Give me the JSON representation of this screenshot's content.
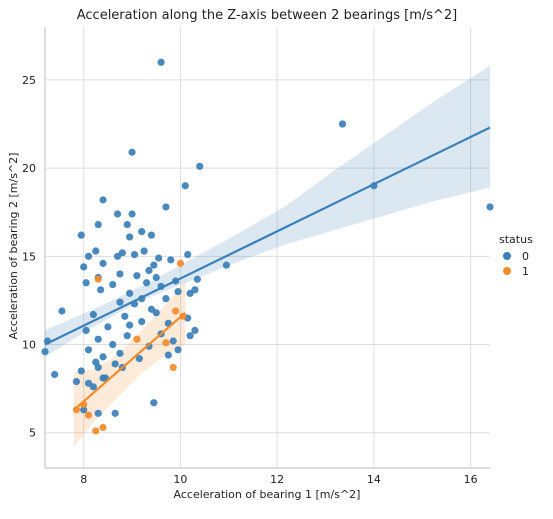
{
  "chart_data": {
    "type": "scatter",
    "title": "Acceleration along the Z-axis between 2 bearings [m/s^2]",
    "xlabel": "Acceleration of bearing 1 [m/s^2]",
    "ylabel": "Acceleration of bearing 2 [m/s^2]",
    "xlim": [
      7.2,
      16.4
    ],
    "ylim": [
      3.0,
      28.0
    ],
    "xticks": [
      8,
      10,
      12,
      14,
      16
    ],
    "yticks": [
      5,
      10,
      15,
      20,
      25
    ],
    "grid": true,
    "legend": {
      "title": "status",
      "placement": "right"
    },
    "series": [
      {
        "name": "0",
        "color": "#3a7fb8",
        "points": [
          [
            9.6,
            26.0
          ],
          [
            13.35,
            22.5
          ],
          [
            9.0,
            20.9
          ],
          [
            10.4,
            20.1
          ],
          [
            14.0,
            19.0
          ],
          [
            10.1,
            19.0
          ],
          [
            8.4,
            18.2
          ],
          [
            9.7,
            17.8
          ],
          [
            16.4,
            17.8
          ],
          [
            8.7,
            17.4
          ],
          [
            9.0,
            17.4
          ],
          [
            8.9,
            16.8
          ],
          [
            8.3,
            16.8
          ],
          [
            9.2,
            16.4
          ],
          [
            7.95,
            16.2
          ],
          [
            9.4,
            16.2
          ],
          [
            8.95,
            16.1
          ],
          [
            8.25,
            15.3
          ],
          [
            8.7,
            15.0
          ],
          [
            9.05,
            15.1
          ],
          [
            9.25,
            15.3
          ],
          [
            8.8,
            15.2
          ],
          [
            8.1,
            15.0
          ],
          [
            9.55,
            14.9
          ],
          [
            10.15,
            15.1
          ],
          [
            9.45,
            14.5
          ],
          [
            9.8,
            14.8
          ],
          [
            10.95,
            14.5
          ],
          [
            8.4,
            14.6
          ],
          [
            8.0,
            14.4
          ],
          [
            9.35,
            14.2
          ],
          [
            8.75,
            14.0
          ],
          [
            9.1,
            13.9
          ],
          [
            8.3,
            13.8
          ],
          [
            9.5,
            13.8
          ],
          [
            9.9,
            13.6
          ],
          [
            10.35,
            13.7
          ],
          [
            8.05,
            13.5
          ],
          [
            8.6,
            13.4
          ],
          [
            9.3,
            13.5
          ],
          [
            9.6,
            13.3
          ],
          [
            9.95,
            13.0
          ],
          [
            10.3,
            13.1
          ],
          [
            8.35,
            13.1
          ],
          [
            8.95,
            12.9
          ],
          [
            9.2,
            12.6
          ],
          [
            9.7,
            12.6
          ],
          [
            10.2,
            12.9
          ],
          [
            8.75,
            12.4
          ],
          [
            9.05,
            12.3
          ],
          [
            9.4,
            12.0
          ],
          [
            7.55,
            11.9
          ],
          [
            8.2,
            11.7
          ],
          [
            8.85,
            11.6
          ],
          [
            9.5,
            11.8
          ],
          [
            10.15,
            11.5
          ],
          [
            9.75,
            11.2
          ],
          [
            8.95,
            11.1
          ],
          [
            8.5,
            11.0
          ],
          [
            9.2,
            11.3
          ],
          [
            8.05,
            10.8
          ],
          [
            10.3,
            10.8
          ],
          [
            8.9,
            10.5
          ],
          [
            9.6,
            10.6
          ],
          [
            10.2,
            10.5
          ],
          [
            7.25,
            10.2
          ],
          [
            8.3,
            10.3
          ],
          [
            9.85,
            10.2
          ],
          [
            8.6,
            10.0
          ],
          [
            9.35,
            9.9
          ],
          [
            7.2,
            9.6
          ],
          [
            8.1,
            9.7
          ],
          [
            8.75,
            9.5
          ],
          [
            9.95,
            9.7
          ],
          [
            8.4,
            9.3
          ],
          [
            9.15,
            9.2
          ],
          [
            9.75,
            9.4
          ],
          [
            8.25,
            9.0
          ],
          [
            8.65,
            8.9
          ],
          [
            8.3,
            8.7
          ],
          [
            7.95,
            8.5
          ],
          [
            8.8,
            8.7
          ],
          [
            7.4,
            8.3
          ],
          [
            8.4,
            8.1
          ],
          [
            7.85,
            7.9
          ],
          [
            8.1,
            7.8
          ],
          [
            8.45,
            8.1
          ],
          [
            8.2,
            7.6
          ],
          [
            8.0,
            6.3
          ],
          [
            8.3,
            6.1
          ],
          [
            8.65,
            6.1
          ],
          [
            9.45,
            6.7
          ]
        ]
      },
      {
        "name": "1",
        "color": "#f58b2a",
        "points": [
          [
            10.0,
            14.6
          ],
          [
            8.3,
            13.7
          ],
          [
            9.1,
            10.3
          ],
          [
            9.7,
            10.1
          ],
          [
            9.9,
            11.9
          ],
          [
            10.05,
            11.6
          ],
          [
            9.85,
            8.7
          ],
          [
            8.0,
            6.6
          ],
          [
            7.85,
            6.3
          ],
          [
            8.1,
            6.0
          ],
          [
            8.25,
            5.1
          ],
          [
            8.4,
            5.3
          ]
        ]
      }
    ],
    "regression": [
      {
        "series": "0",
        "x": [
          7.2,
          16.4
        ],
        "y": [
          10.0,
          22.3
        ],
        "ci_x": [
          7.2,
          8.2,
          9.2,
          10.2,
          11.2,
          12.2,
          13.2,
          14.2,
          15.2,
          16.4
        ],
        "ci_low": [
          9.3,
          11.0,
          12.5,
          13.6,
          14.7,
          15.7,
          16.5,
          17.3,
          18.1,
          18.9
        ],
        "ci_high": [
          10.8,
          12.0,
          13.3,
          14.8,
          16.3,
          17.9,
          19.9,
          21.8,
          23.7,
          25.8
        ]
      },
      {
        "series": "1",
        "x": [
          7.8,
          10.1
        ],
        "y": [
          6.3,
          11.8
        ],
        "ci_x": [
          7.8,
          8.2,
          8.7,
          9.2,
          9.7,
          10.1
        ],
        "ci_low": [
          4.2,
          5.6,
          7.0,
          8.4,
          9.4,
          10.0
        ],
        "ci_high": [
          8.4,
          8.6,
          9.4,
          10.8,
          12.3,
          13.6
        ]
      }
    ]
  }
}
